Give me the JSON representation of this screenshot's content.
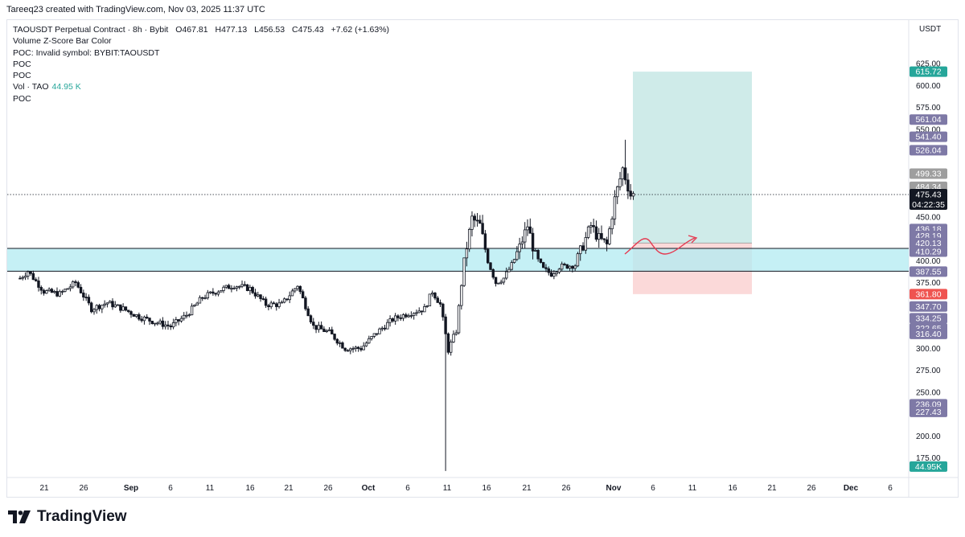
{
  "header": {
    "text": "Tareeq23 created with TradingView.com, Nov 03, 2025 11:37 UTC"
  },
  "legend": {
    "symbol": "TAOUSDT Perpetual Contract · 8h · Bybit",
    "open": "O467.81",
    "high": "H477.13",
    "low": "L456.53",
    "close": "C475.43",
    "change": "+7.62 (+1.63%)",
    "rows": [
      "Volume Z-Score Bar Color",
      "POC: Invalid symbol: BYBIT:TAOUSDT",
      "POC",
      "POC"
    ],
    "vol_label": "Vol · TAO",
    "vol_value": "44.95 K",
    "last_row": "POC"
  },
  "axis_unit": "USDT",
  "footer": {
    "brand": "TradingView"
  },
  "colors": {
    "up": "#26a69a",
    "down": "#ef5350",
    "candle": "#131722",
    "zone": "#b2ebf2",
    "target": "#26a69a",
    "stop": "#ef5350",
    "badge": "#7e79a6",
    "path": "#e53950"
  },
  "chart_data": {
    "type": "candlestick",
    "title": "TAOUSDT Perpetual Contract · 8h · Bybit",
    "ylim": [
      160,
      640
    ],
    "y_ticks": [
      175,
      200,
      250,
      275,
      300,
      375,
      400,
      450,
      550,
      575,
      600,
      625
    ],
    "x_ticks": [
      "21",
      "26",
      "Sep",
      "6",
      "11",
      "16",
      "21",
      "26",
      "Oct",
      "6",
      "11",
      "16",
      "21",
      "26",
      "Nov",
      "6",
      "11",
      "16",
      "21",
      "26",
      "Dec",
      "6"
    ],
    "price_path": [
      [
        "Aug 18",
        380
      ],
      [
        "Aug 19",
        388
      ],
      [
        "Aug 21",
        365
      ],
      [
        "Aug 23",
        362
      ],
      [
        "Aug 25",
        375
      ],
      [
        "Aug 27",
        345
      ],
      [
        "Aug 29",
        352
      ],
      [
        "Aug 31",
        345
      ],
      [
        "Sep 2",
        336
      ],
      [
        "Sep 4",
        330
      ],
      [
        "Sep 6",
        325
      ],
      [
        "Sep 8",
        338
      ],
      [
        "Sep 10",
        358
      ],
      [
        "Sep 12",
        366
      ],
      [
        "Sep 14",
        372
      ],
      [
        "Sep 16",
        368
      ],
      [
        "Sep 18",
        350
      ],
      [
        "Sep 20",
        350
      ],
      [
        "Sep 22",
        372
      ],
      [
        "Sep 24",
        325
      ],
      [
        "Sep 26",
        318
      ],
      [
        "Sep 28",
        300
      ],
      [
        "Sep 30",
        300
      ],
      [
        "Oct 2",
        318
      ],
      [
        "Oct 4",
        333
      ],
      [
        "Oct 6",
        340
      ],
      [
        "Oct 8",
        345
      ],
      [
        "Oct 9",
        365
      ],
      [
        "Oct 10",
        350
      ],
      [
        "Oct 11",
        298
      ],
      [
        "Oct 12",
        320
      ],
      [
        "Oct 13",
        400
      ],
      [
        "Oct 14",
        448
      ],
      [
        "Oct 15",
        440
      ],
      [
        "Oct 16",
        400
      ],
      [
        "Oct 17",
        375
      ],
      [
        "Oct 18",
        380
      ],
      [
        "Oct 19",
        395
      ],
      [
        "Oct 20",
        415
      ],
      [
        "Oct 21",
        440
      ],
      [
        "Oct 22",
        405
      ],
      [
        "Oct 23",
        390
      ],
      [
        "Oct 24",
        385
      ],
      [
        "Oct 25",
        393
      ],
      [
        "Oct 27",
        395
      ],
      [
        "Oct 28",
        418
      ],
      [
        "Oct 29",
        440
      ],
      [
        "Oct 30",
        425
      ],
      [
        "Oct 31",
        418
      ],
      [
        "Nov 1",
        470
      ],
      [
        "Nov 2",
        505
      ],
      [
        "Nov 3",
        475
      ]
    ],
    "annotations": {
      "zone_top": 414,
      "zone_bottom": 388,
      "target": 615.72,
      "entry": 420.13,
      "stop": 361.8,
      "last_price": 475.43,
      "countdown": "04:22:35",
      "last_volume": "44.95K"
    },
    "price_labels": [
      {
        "value": "615.72",
        "y": 615.72,
        "style": "target"
      },
      {
        "value": "561.04",
        "y": 561.04,
        "style": "badge"
      },
      {
        "value": "541.40",
        "y": 541.4,
        "style": "badge"
      },
      {
        "value": "526.04",
        "y": 526.04,
        "style": "badge"
      },
      {
        "value": "499.33",
        "y": 499.33,
        "style": "gray"
      },
      {
        "value": "484.34",
        "y": 484.34,
        "style": "gray"
      },
      {
        "value": "475.43",
        "y": 475.43,
        "style": "last"
      },
      {
        "value": "436.18",
        "y": 436.18,
        "style": "badge"
      },
      {
        "value": "428.19",
        "y": 428.19,
        "style": "badge"
      },
      {
        "value": "420.13",
        "y": 420.13,
        "style": "badge"
      },
      {
        "value": "410.29",
        "y": 410.29,
        "style": "badge"
      },
      {
        "value": "387.55",
        "y": 387.55,
        "style": "badge"
      },
      {
        "value": "361.80",
        "y": 361.8,
        "style": "stop"
      },
      {
        "value": "347.70",
        "y": 347.7,
        "style": "badge"
      },
      {
        "value": "334.25",
        "y": 334.25,
        "style": "badge"
      },
      {
        "value": "322.65",
        "y": 322.65,
        "style": "badge"
      },
      {
        "value": "316.40",
        "y": 316.4,
        "style": "badge"
      },
      {
        "value": "236.09",
        "y": 236.09,
        "style": "badge"
      },
      {
        "value": "227.43",
        "y": 227.43,
        "style": "badge"
      },
      {
        "value": "44.95K",
        "y": 165,
        "style": "volume"
      }
    ]
  }
}
